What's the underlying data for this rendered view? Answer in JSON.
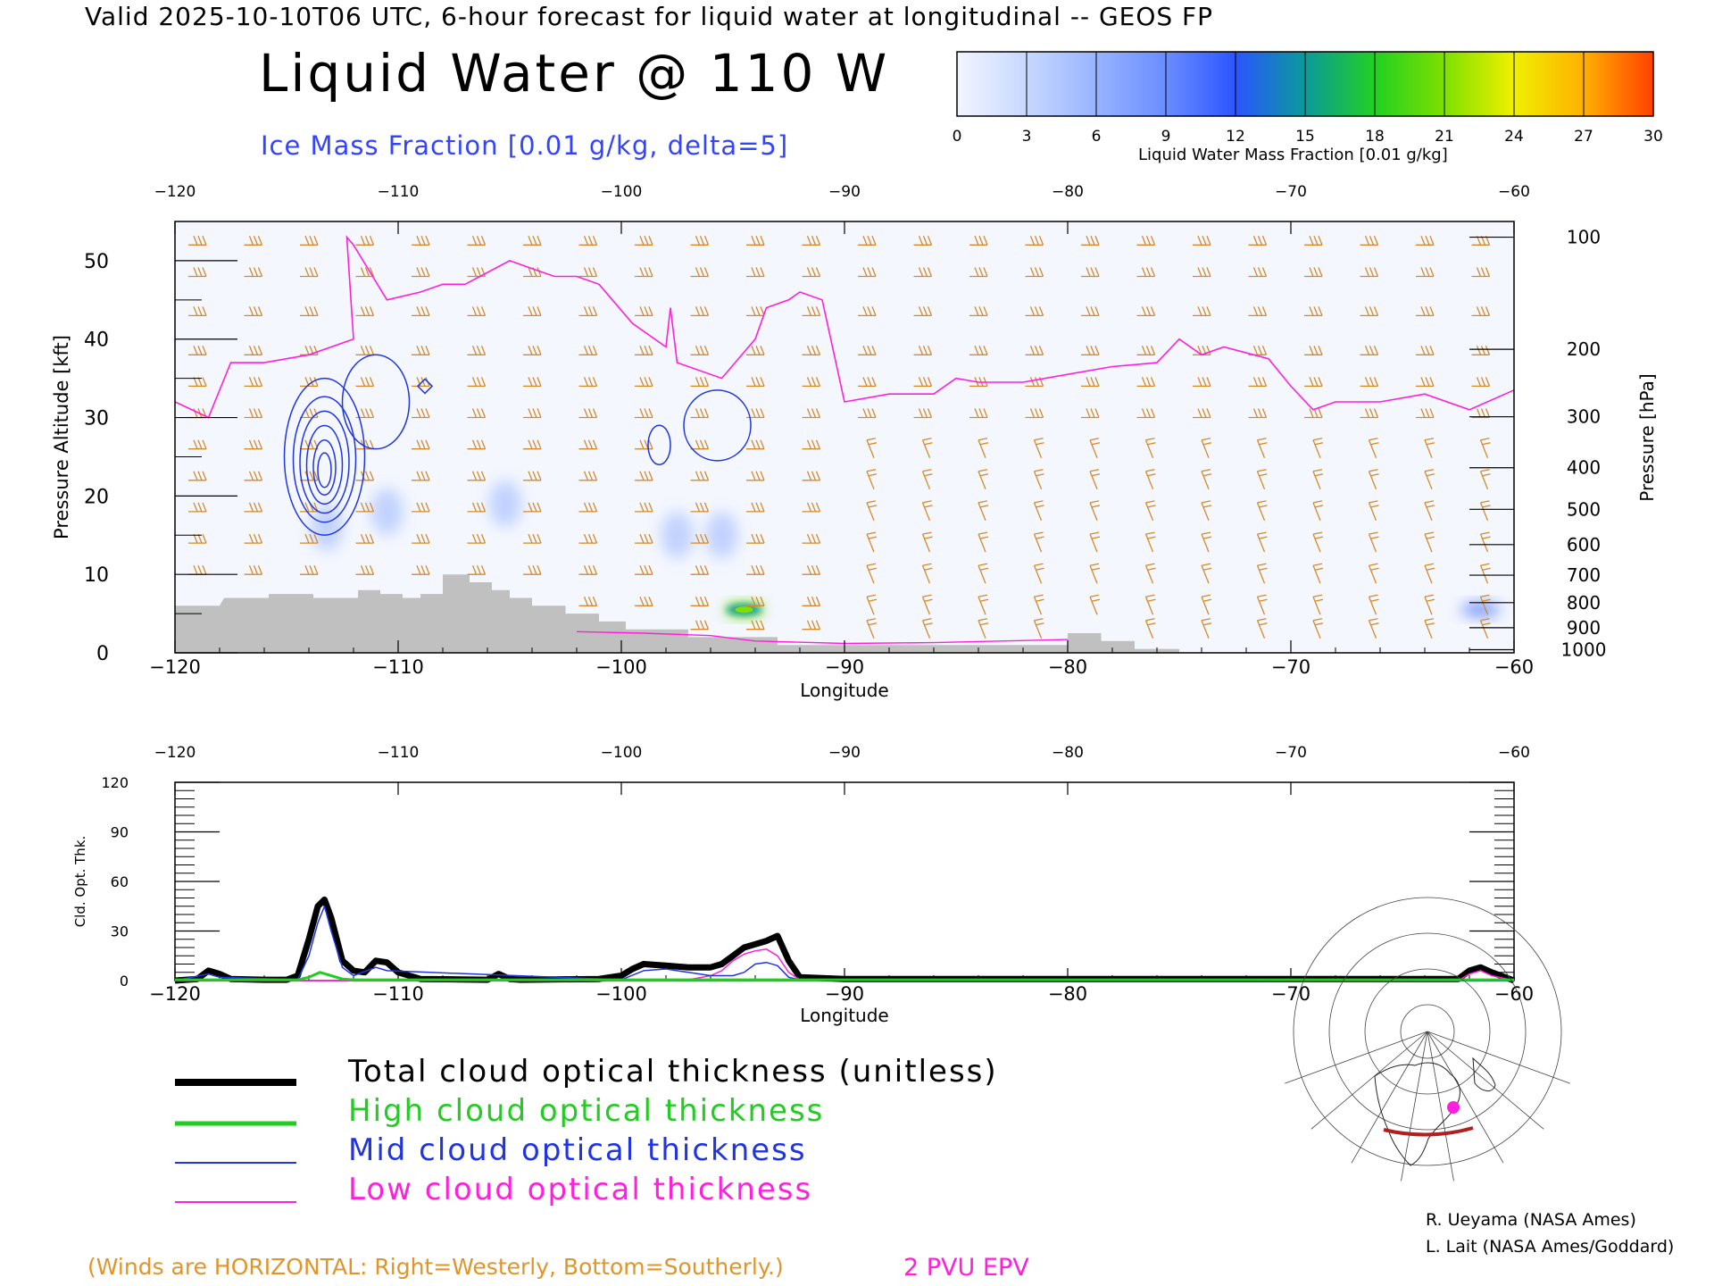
{
  "header": {
    "valid_line": "Valid 2025-10-10T06 UTC, 6-hour forecast for liquid water at longitudinal -- GEOS FP",
    "title": "Liquid Water @ 110 W",
    "subtitle": "Ice Mass Fraction [0.01 g/kg, delta=5]"
  },
  "colorbar": {
    "label": "Liquid Water Mass Fraction [0.01 g/kg]",
    "ticks": [
      "0",
      "3",
      "6",
      "9",
      "12",
      "15",
      "18",
      "21",
      "24",
      "27",
      "30"
    ],
    "colors": [
      "#f2f5ff",
      "#c7d8ff",
      "#98b4ff",
      "#6b8cff",
      "#2b55ff",
      "#0a9a9a",
      "#22d022",
      "#7ee000",
      "#f0f000",
      "#ffb000",
      "#ff4000"
    ]
  },
  "colors": {
    "terrain": "#c0c0c0",
    "epv": "#ff1fdc",
    "ice_contour": "#2035e0",
    "wind_barb": "#d48a2a",
    "total": "#000000",
    "high": "#22cc22",
    "mid": "#2035e0",
    "low": "#ff1fdc"
  },
  "chart_data": [
    {
      "type": "heatmap",
      "title": "Liquid Water @ 110 W",
      "xlabel": "Longitude",
      "ylabel_left": "Pressure Altitude [kft]",
      "ylabel_right": "Pressure [hPa]",
      "xlim": [
        -120,
        -60
      ],
      "ylim": [
        0,
        55
      ],
      "x_ticks": [
        "-120",
        "-110",
        "-100",
        "-90",
        "-80",
        "-70",
        "-60"
      ],
      "x_ticks_top": [
        "-120",
        "-110",
        "-100",
        "-90",
        "-80",
        "-70",
        "-60"
      ],
      "y_ticks": [
        "0",
        "10",
        "20",
        "30",
        "40",
        "50"
      ],
      "pressure_ticks": [
        {
          "label": "100",
          "kft": 53.0
        },
        {
          "label": "200",
          "kft": 38.7
        },
        {
          "label": "300",
          "kft": 30.1
        },
        {
          "label": "400",
          "kft": 23.6
        },
        {
          "label": "500",
          "kft": 18.3
        },
        {
          "label": "600",
          "kft": 13.8
        },
        {
          "label": "700",
          "kft": 9.9
        },
        {
          "label": "800",
          "kft": 6.4
        },
        {
          "label": "900",
          "kft": 3.2
        },
        {
          "label": "1000",
          "kft": 0.4
        }
      ],
      "terrain_kft": [
        [
          -120,
          6
        ],
        [
          -118,
          6
        ],
        [
          -117.8,
          7
        ],
        [
          -115.8,
          7
        ],
        [
          -115.8,
          7.5
        ],
        [
          -113.8,
          7.5
        ],
        [
          -113.8,
          7
        ],
        [
          -111.8,
          7
        ],
        [
          -111.8,
          8
        ],
        [
          -110.8,
          8
        ],
        [
          -110.8,
          7.5
        ],
        [
          -109.8,
          7.5
        ],
        [
          -109.8,
          7
        ],
        [
          -109,
          7
        ],
        [
          -109,
          7.5
        ],
        [
          -108,
          7.5
        ],
        [
          -108,
          10
        ],
        [
          -106.8,
          10
        ],
        [
          -106.8,
          9
        ],
        [
          -105.8,
          9
        ],
        [
          -105.8,
          8
        ],
        [
          -105,
          8
        ],
        [
          -105,
          7
        ],
        [
          -104,
          7
        ],
        [
          -104,
          6
        ],
        [
          -102.5,
          6
        ],
        [
          -102.5,
          5
        ],
        [
          -101,
          5
        ],
        [
          -101,
          4
        ],
        [
          -99.8,
          4
        ],
        [
          -99.8,
          3
        ],
        [
          -97,
          3
        ],
        [
          -97,
          2
        ],
        [
          -93,
          2
        ],
        [
          -93,
          1
        ],
        [
          -80,
          1
        ],
        [
          -80,
          2.5
        ],
        [
          -78.5,
          2.5
        ],
        [
          -78.5,
          1.5
        ],
        [
          -77,
          1.5
        ],
        [
          -77,
          0.5
        ],
        [
          -75,
          0.5
        ],
        [
          -75,
          0
        ]
      ],
      "epv_2pvu_kft": [
        [
          -120,
          32
        ],
        [
          -118.5,
          30
        ],
        [
          -117.5,
          37
        ],
        [
          -116,
          37
        ],
        [
          -114,
          38
        ],
        [
          -113,
          39
        ],
        [
          -112,
          40
        ],
        [
          -112.3,
          53
        ],
        [
          -112,
          52
        ],
        [
          -110.5,
          45
        ],
        [
          -109,
          46
        ],
        [
          -108,
          47
        ],
        [
          -107,
          47
        ],
        [
          -105,
          50
        ],
        [
          -104,
          49
        ],
        [
          -103,
          48
        ],
        [
          -102,
          48
        ],
        [
          -101,
          47
        ],
        [
          -99.5,
          42
        ],
        [
          -98,
          39
        ],
        [
          -97.8,
          44
        ],
        [
          -97.5,
          37
        ],
        [
          -95.5,
          35
        ],
        [
          -94,
          40
        ],
        [
          -93.5,
          44
        ],
        [
          -92.5,
          45
        ],
        [
          -92,
          46
        ],
        [
          -91,
          45
        ],
        [
          -90,
          32
        ],
        [
          -88,
          33
        ],
        [
          -86,
          33
        ],
        [
          -85,
          35
        ],
        [
          -84,
          34.5
        ],
        [
          -82,
          34.5
        ],
        [
          -80,
          35.5
        ],
        [
          -78,
          36.5
        ],
        [
          -76,
          37
        ],
        [
          -75,
          40
        ],
        [
          -74,
          38
        ],
        [
          -73,
          39
        ],
        [
          -71,
          37.5
        ],
        [
          -70,
          34
        ],
        [
          -69,
          31
        ],
        [
          -68,
          32
        ],
        [
          -66,
          32
        ],
        [
          -64,
          33
        ],
        [
          -62,
          31
        ],
        [
          -60,
          33.5
        ]
      ],
      "ice_mass_contours": [
        {
          "center": [
            -113.3,
            25
          ],
          "rx": [
            1.8,
            1.4,
            1.1,
            0.8,
            0.5,
            0.3
          ],
          "ry": [
            10,
            8,
            6.5,
            5,
            3.5,
            2.2
          ]
        },
        {
          "center": [
            -111,
            32
          ],
          "rx": [
            1.5
          ],
          "ry": [
            6
          ]
        },
        {
          "center": [
            -95.7,
            29
          ],
          "rx": [
            1.5
          ],
          "ry": [
            4.5
          ]
        },
        {
          "center": [
            -98.3,
            26.5
          ],
          "rx": [
            0.5
          ],
          "ry": [
            2.5
          ]
        }
      ],
      "liquid_water_blobs": [
        {
          "lon": -94.5,
          "kft": 5.5,
          "value": 20
        },
        {
          "lon": -61.5,
          "kft": 5.5,
          "value": 9
        },
        {
          "lon": -110.5,
          "kft": 18,
          "value": 5
        },
        {
          "lon": -113.2,
          "kft": 16,
          "value": 4
        },
        {
          "lon": -97.5,
          "kft": 15,
          "value": 2
        },
        {
          "lon": -95.5,
          "kft": 15,
          "value": 2
        },
        {
          "lon": -105.2,
          "kft": 19,
          "value": 1
        }
      ]
    },
    {
      "type": "line",
      "xlabel": "Longitude",
      "ylabel": "Cld. Opt. Thk.",
      "xlim": [
        -120,
        -60
      ],
      "ylim": [
        0,
        120
      ],
      "x_ticks": [
        "-120",
        "-110",
        "-100",
        "-90",
        "-80",
        "-70",
        "-60"
      ],
      "x_ticks_top": [
        "-120",
        "-110",
        "-100",
        "-90",
        "-80",
        "-70",
        "-60"
      ],
      "y_ticks": [
        "0",
        "30",
        "60",
        "90",
        "120"
      ],
      "series": [
        {
          "name": "Total cloud optical thickness (unitless)",
          "color": "#000000",
          "x": [
            -120,
            -119,
            -118.5,
            -118,
            -117.5,
            -116,
            -115,
            -114.5,
            -114,
            -113.6,
            -113.3,
            -113,
            -112.5,
            -112,
            -111.5,
            -111,
            -110.5,
            -110,
            -109,
            -106,
            -105.5,
            -105,
            -104.5,
            -101,
            -100,
            -99.5,
            -99,
            -98,
            -97,
            -96,
            -95.5,
            -95,
            -94.5,
            -94,
            -93.5,
            -93,
            -92.5,
            -92,
            -90,
            -62.5,
            -62,
            -61.5,
            -61,
            -60
          ],
          "y": [
            0,
            1,
            6,
            4,
            1,
            0.5,
            0.5,
            3,
            25,
            45,
            49,
            38,
            12,
            6,
            5,
            12,
            11,
            5,
            1,
            0.5,
            4,
            1,
            0.5,
            1,
            3,
            7,
            10,
            9,
            8,
            8,
            10,
            15,
            20,
            22,
            24,
            27,
            12,
            2,
            1,
            1,
            6,
            8,
            5,
            0
          ]
        },
        {
          "name": "High cloud optical thickness",
          "color": "#22cc22",
          "x": [
            -120,
            -114.5,
            -114,
            -113.5,
            -113,
            -112.5,
            -112,
            -60
          ],
          "y": [
            0.5,
            0.5,
            2,
            5,
            3,
            1,
            0.5,
            0.5
          ]
        },
        {
          "name": "Mid cloud optical thickness",
          "color": "#2035e0",
          "x": [
            -120,
            -118.5,
            -118,
            -114.5,
            -114,
            -113.6,
            -113.3,
            -113,
            -112.5,
            -112,
            -111,
            -110.5,
            -100,
            -99,
            -98,
            -97,
            -96,
            -95,
            -94.5,
            -94,
            -93.5,
            -93,
            -92.5,
            -92,
            -60
          ],
          "y": [
            0,
            4,
            2,
            0.5,
            15,
            35,
            45,
            30,
            8,
            3,
            8,
            6,
            0.5,
            6,
            7,
            5,
            3,
            3,
            5,
            10,
            11,
            9,
            2,
            0.5,
            0
          ]
        },
        {
          "name": "Low cloud optical thickness",
          "color": "#ff1fdc",
          "x": [
            -120,
            -100,
            -97,
            -96,
            -95.5,
            -95,
            -94.5,
            -94,
            -93.5,
            -93,
            -92.5,
            -92,
            -62.5,
            -62,
            -61.5,
            -61,
            -60
          ],
          "y": [
            0,
            0,
            0.5,
            3,
            6,
            12,
            16,
            18,
            19,
            15,
            5,
            0.5,
            0,
            4,
            6,
            3,
            0
          ]
        }
      ]
    }
  ],
  "legend": {
    "total": "Total cloud optical thickness (unitless)",
    "high": "High cloud optical thickness",
    "mid": "Mid cloud optical thickness",
    "low": "Low cloud optical thickness"
  },
  "credits": {
    "line1": "R. Ueyama (NASA Ames)",
    "line2": "L. Lait (NASA Ames/Goddard)"
  },
  "notes": {
    "winds": "(Winds are HORIZONTAL: Right=Westerly, Bottom=Southerly.)",
    "epv": "2 PVU EPV"
  },
  "locator_map": {
    "section_color": "#b02020",
    "marker_color": "#ff1fdc"
  }
}
